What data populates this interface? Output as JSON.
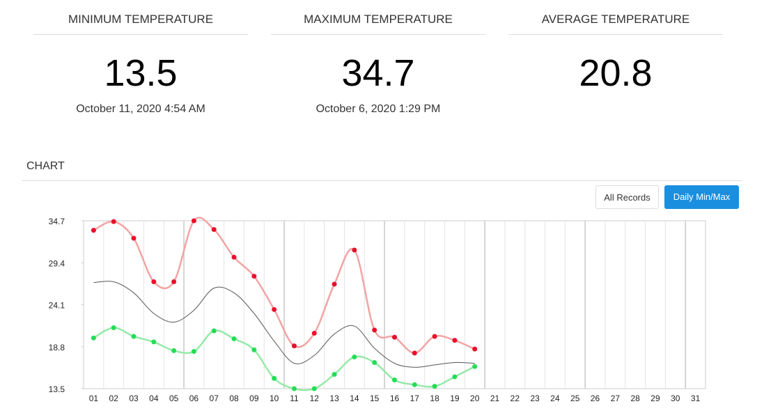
{
  "stats": [
    {
      "title": "MINIMUM TEMPERATURE",
      "value": "13.5",
      "date": "October 11, 2020 4:54 AM"
    },
    {
      "title": "MAXIMUM TEMPERATURE",
      "value": "34.7",
      "date": "October 6, 2020 1:29 PM"
    },
    {
      "title": "AVERAGE TEMPERATURE",
      "value": "20.8"
    }
  ],
  "chart_section": {
    "title": "CHART",
    "buttons": [
      "All Records",
      "Daily Min/Max"
    ]
  },
  "chart_data": {
    "type": "line",
    "categories": [
      "01",
      "02",
      "03",
      "04",
      "05",
      "06",
      "07",
      "08",
      "09",
      "10",
      "11",
      "12",
      "13",
      "14",
      "15",
      "16",
      "17",
      "18",
      "19",
      "20",
      "21",
      "22",
      "23",
      "24",
      "25",
      "26",
      "27",
      "28",
      "29",
      "30",
      "31"
    ],
    "series": [
      {
        "color": "#e8102a",
        "line_color": "#f2a3a3",
        "values": [
          33.5,
          34.6,
          32.5,
          27.0,
          27.0,
          34.7,
          33.6,
          30.1,
          27.7,
          23.5,
          18.9,
          20.5,
          26.7,
          31.0,
          20.9,
          20.0,
          18.0,
          20.1,
          19.6,
          18.5,
          null,
          null,
          null,
          null,
          null,
          null,
          null,
          null,
          null,
          null,
          null
        ]
      },
      {
        "color": "#22dd55",
        "line_color": "#95eaa8",
        "values": [
          19.9,
          21.2,
          20.1,
          19.4,
          18.3,
          18.2,
          20.8,
          19.8,
          18.4,
          14.8,
          13.5,
          13.5,
          15.3,
          17.5,
          16.8,
          14.6,
          14.0,
          13.8,
          15.0,
          16.3,
          null,
          null,
          null,
          null,
          null,
          null,
          null,
          null,
          null,
          null,
          null
        ]
      },
      {
        "color": "#555555",
        "values": [
          26.9,
          27.0,
          25.6,
          23.0,
          21.9,
          23.4,
          26.2,
          25.6,
          23.0,
          19.5,
          16.7,
          17.7,
          20.4,
          21.4,
          18.6,
          16.7,
          16.2,
          16.5,
          16.8,
          16.7,
          null,
          null,
          null,
          null,
          null,
          null,
          null,
          null,
          null,
          null,
          null
        ]
      }
    ],
    "ylim": [
      13.5,
      34.7
    ],
    "yticks": [
      13.5,
      18.8,
      24.1,
      29.4,
      34.7
    ]
  }
}
